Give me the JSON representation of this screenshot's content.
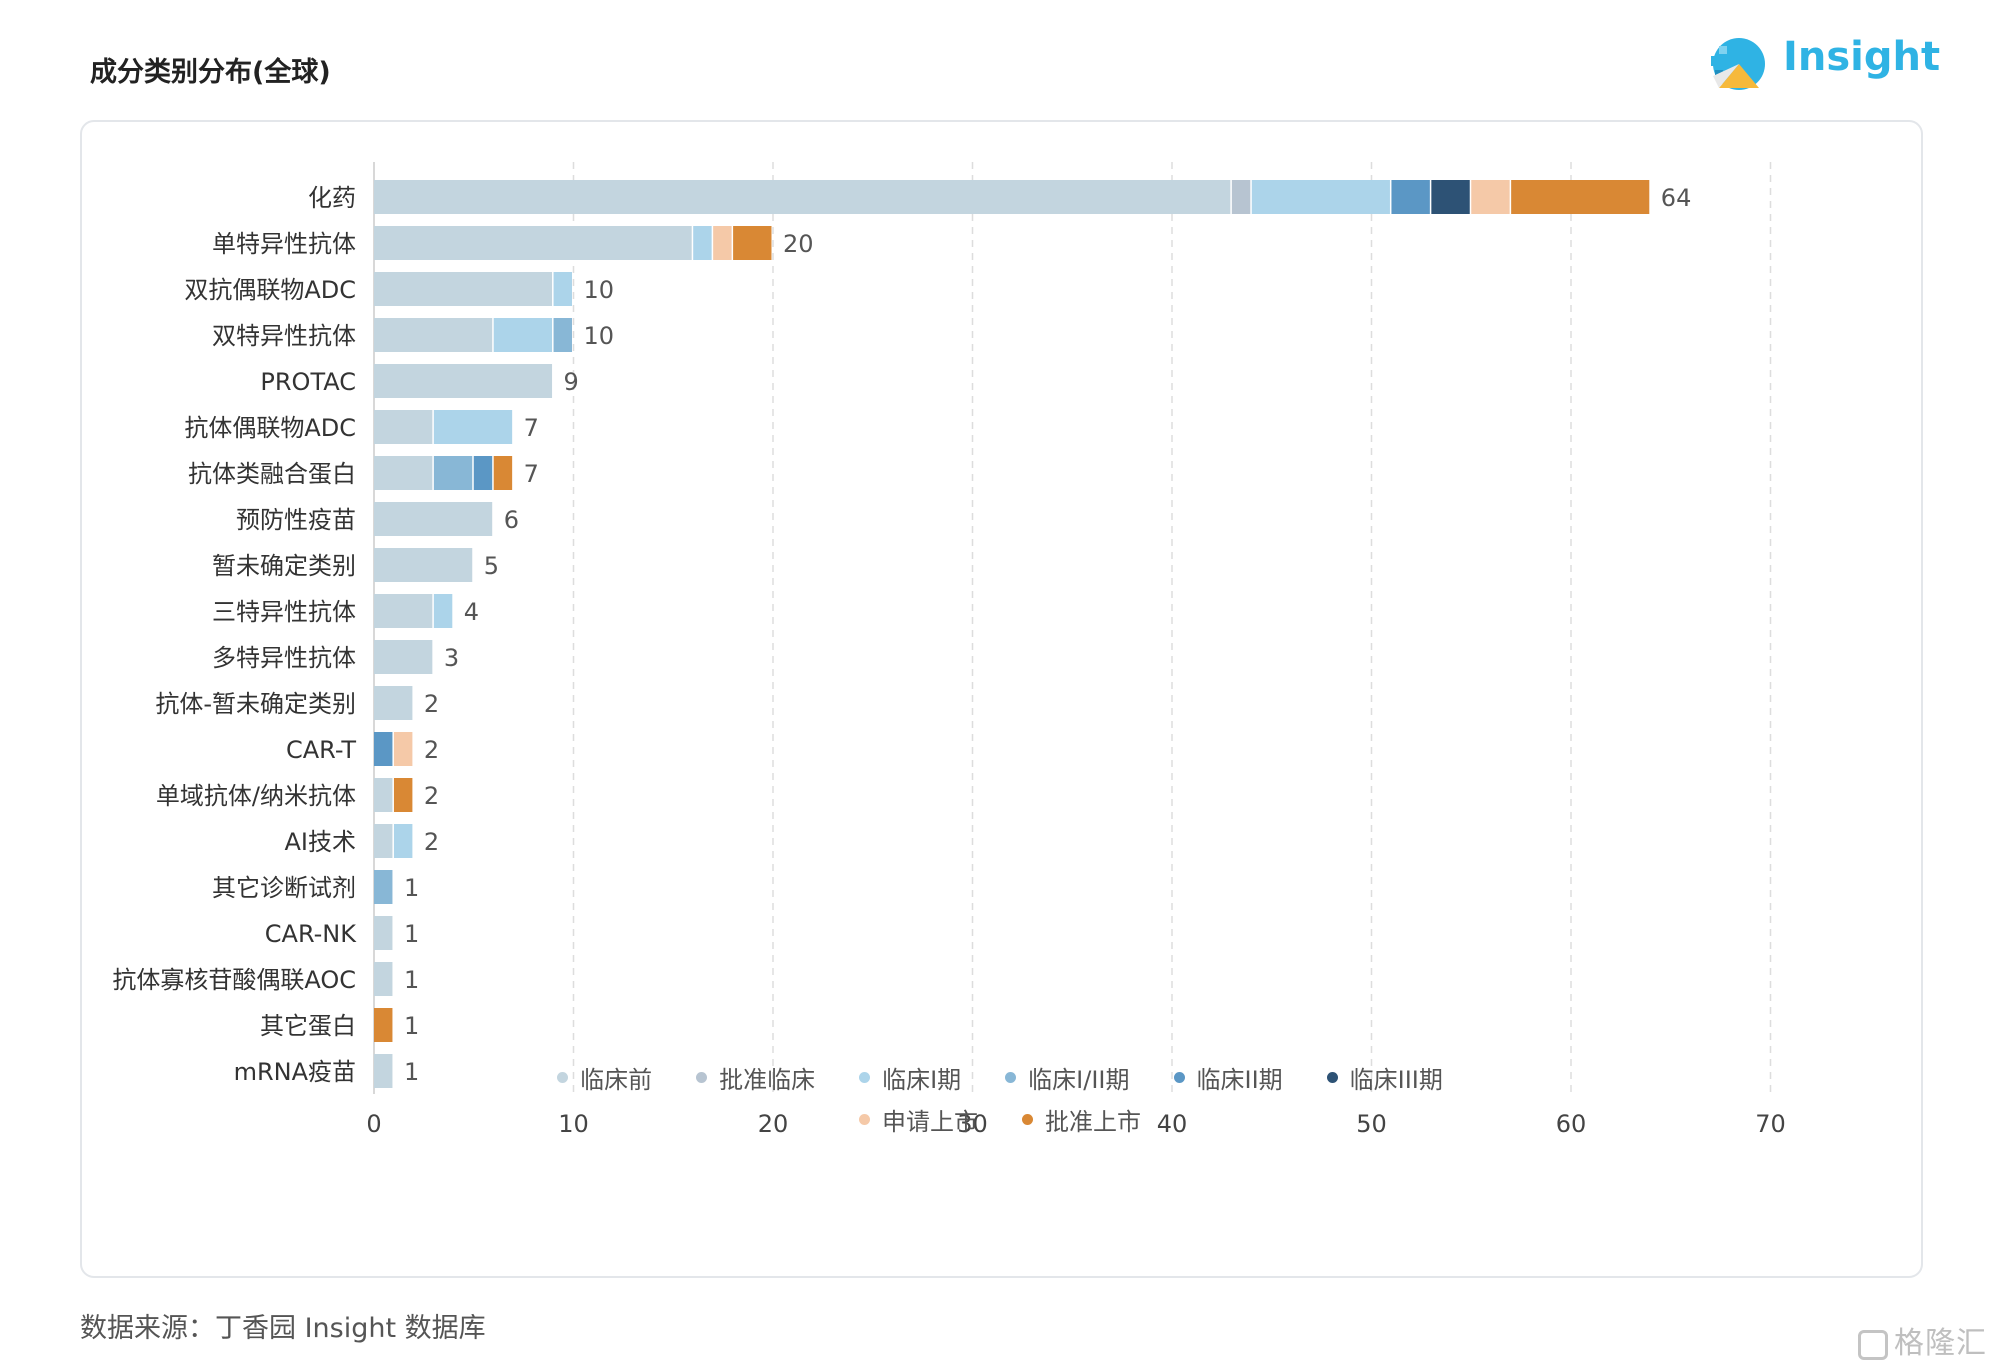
{
  "header": {
    "title": "成分类别分布(全球)",
    "logo_text": "Insight"
  },
  "footer": {
    "source": "数据来源：丁香园 Insight 数据库",
    "watermark": "格隆汇"
  },
  "chart_data": {
    "type": "bar",
    "orientation": "horizontal",
    "stacked": true,
    "title": "成分类别分布(全球)",
    "xlim": [
      0,
      70
    ],
    "xticks": [
      0,
      10,
      20,
      30,
      40,
      50,
      60,
      70
    ],
    "grid": "vertical-dashed",
    "legend_position": "bottom",
    "categories": [
      "化药",
      "单特异性抗体",
      "双抗偶联物ADC",
      "双特异性抗体",
      "PROTAC",
      "抗体偶联物ADC",
      "抗体类融合蛋白",
      "预防性疫苗",
      "暂未确定类别",
      "三特异性抗体",
      "多特异性抗体",
      "抗体-暂未确定类别",
      "CAR-T",
      "单域抗体/纳米抗体",
      "AI技术",
      "其它诊断试剂",
      "CAR-NK",
      "抗体寡核苷酸偶联AOC",
      "其它蛋白",
      "mRNA疫苗"
    ],
    "totals": [
      64,
      20,
      10,
      10,
      9,
      7,
      7,
      6,
      5,
      4,
      3,
      2,
      2,
      2,
      2,
      1,
      1,
      1,
      1,
      1
    ],
    "series": [
      {
        "name": "临床前",
        "color": "#c3d5df",
        "values": [
          43,
          16,
          9,
          6,
          9,
          3,
          3,
          6,
          5,
          3,
          3,
          2,
          0,
          1,
          1,
          0,
          1,
          1,
          0,
          1
        ]
      },
      {
        "name": "批准临床",
        "color": "#b7c4d1",
        "values": [
          1,
          0,
          0,
          0,
          0,
          0,
          0,
          0,
          0,
          0,
          0,
          0,
          0,
          0,
          0,
          0,
          0,
          0,
          0,
          0
        ]
      },
      {
        "name": "临床I期",
        "color": "#acd4ea",
        "values": [
          7,
          1,
          1,
          3,
          0,
          4,
          0,
          0,
          0,
          1,
          0,
          0,
          0,
          0,
          1,
          0,
          0,
          0,
          0,
          0
        ]
      },
      {
        "name": "临床I/II期",
        "color": "#88b7d6",
        "values": [
          0,
          0,
          0,
          1,
          0,
          0,
          2,
          0,
          0,
          0,
          0,
          0,
          0,
          0,
          0,
          1,
          0,
          0,
          0,
          0
        ]
      },
      {
        "name": "临床II期",
        "color": "#5b97c5",
        "values": [
          2,
          0,
          0,
          0,
          0,
          0,
          1,
          0,
          0,
          0,
          0,
          0,
          1,
          0,
          0,
          0,
          0,
          0,
          0,
          0
        ]
      },
      {
        "name": "临床III期",
        "color": "#2d5275",
        "values": [
          2,
          0,
          0,
          0,
          0,
          0,
          0,
          0,
          0,
          0,
          0,
          0,
          0,
          0,
          0,
          0,
          0,
          0,
          0,
          0
        ]
      },
      {
        "name": "申请上市",
        "color": "#f5c9a8",
        "values": [
          2,
          1,
          0,
          0,
          0,
          0,
          0,
          0,
          0,
          0,
          0,
          0,
          1,
          0,
          0,
          0,
          0,
          0,
          0,
          0
        ]
      },
      {
        "name": "批准上市",
        "color": "#d98834",
        "values": [
          7,
          2,
          0,
          0,
          0,
          0,
          1,
          0,
          0,
          0,
          0,
          0,
          0,
          1,
          0,
          0,
          0,
          0,
          1,
          0
        ]
      }
    ]
  }
}
